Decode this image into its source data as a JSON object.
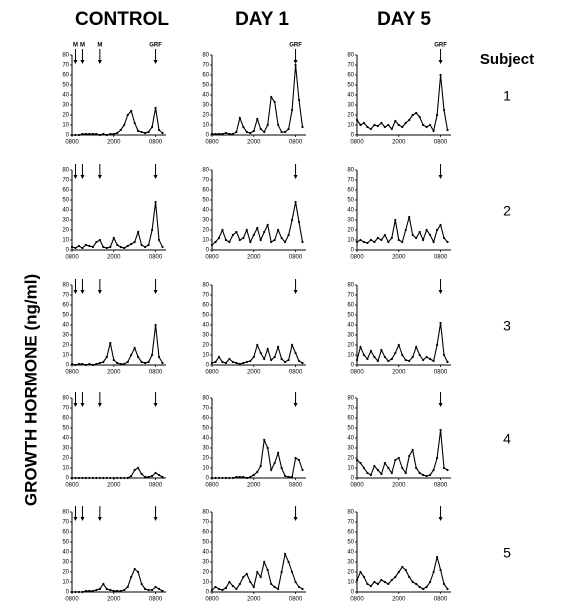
{
  "columns": [
    "CONTROL",
    "DAY 1",
    "DAY 5"
  ],
  "subject_label": "Subject",
  "subjects": [
    "1",
    "2",
    "3",
    "4",
    "5"
  ],
  "y_label": "GROWTH HORMONE (ng/ml)",
  "chart_data": [
    {
      "type": "line",
      "x": [
        0,
        1,
        2,
        3,
        4,
        5,
        6,
        7,
        8,
        9,
        10,
        11,
        12,
        13,
        14,
        15,
        16,
        17,
        18,
        19,
        20,
        21,
        22,
        23,
        24,
        25,
        26
      ],
      "values": [
        0,
        0,
        0,
        1,
        1,
        1,
        1,
        1,
        0,
        1,
        0,
        1,
        1,
        2,
        5,
        10,
        20,
        24,
        12,
        4,
        3,
        2,
        3,
        8,
        27,
        5,
        2
      ],
      "xlim": [
        0,
        27
      ],
      "ylim": [
        0,
        80
      ],
      "xticks": [
        {
          "value": 0,
          "label": "0800"
        },
        {
          "value": 12,
          "label": "2000"
        },
        {
          "value": 24,
          "label": "0800"
        }
      ],
      "yticks": [
        0,
        10,
        20,
        30,
        40,
        50,
        60,
        70,
        80
      ],
      "markers": {
        "x": [
          1,
          3,
          8,
          24
        ],
        "labels": [
          "M",
          "M",
          "M",
          "GRF"
        ]
      }
    },
    {
      "type": "line",
      "x": [
        0,
        1,
        2,
        3,
        4,
        5,
        6,
        7,
        8,
        9,
        10,
        11,
        12,
        13,
        14,
        15,
        16,
        17,
        18,
        19,
        20,
        21,
        22,
        23,
        24,
        25,
        26
      ],
      "values": [
        1,
        1,
        1,
        1,
        2,
        1,
        1,
        3,
        17,
        8,
        3,
        2,
        4,
        16,
        6,
        3,
        10,
        38,
        33,
        10,
        3,
        3,
        6,
        25,
        70,
        35,
        8
      ],
      "xlim": [
        0,
        27
      ],
      "ylim": [
        0,
        80
      ],
      "xticks": [
        {
          "value": 0,
          "label": "0800"
        },
        {
          "value": 12,
          "label": "2000"
        },
        {
          "value": 24,
          "label": "0800"
        }
      ],
      "yticks": [
        0,
        10,
        20,
        30,
        40,
        50,
        60,
        70,
        80
      ],
      "markers": {
        "x": [
          24
        ],
        "labels": [
          "GRF"
        ]
      }
    },
    {
      "type": "line",
      "x": [
        0,
        1,
        2,
        3,
        4,
        5,
        6,
        7,
        8,
        9,
        10,
        11,
        12,
        13,
        14,
        15,
        16,
        17,
        18,
        19,
        20,
        21,
        22,
        23,
        24,
        25,
        26
      ],
      "values": [
        15,
        10,
        12,
        8,
        6,
        10,
        9,
        12,
        8,
        10,
        6,
        14,
        10,
        8,
        12,
        15,
        20,
        22,
        18,
        10,
        8,
        10,
        4,
        20,
        60,
        25,
        5
      ],
      "xlim": [
        0,
        27
      ],
      "ylim": [
        0,
        80
      ],
      "xticks": [
        {
          "value": 0,
          "label": "0800"
        },
        {
          "value": 12,
          "label": "2000"
        },
        {
          "value": 24,
          "label": "0800"
        }
      ],
      "yticks": [
        0,
        10,
        20,
        30,
        40,
        50,
        60,
        70,
        80
      ],
      "markers": {
        "x": [
          24
        ],
        "labels": [
          "GRF"
        ]
      }
    },
    {
      "type": "line",
      "x": [
        0,
        1,
        2,
        3,
        4,
        5,
        6,
        7,
        8,
        9,
        10,
        11,
        12,
        13,
        14,
        15,
        16,
        17,
        18,
        19,
        20,
        21,
        22,
        23,
        24,
        25,
        26
      ],
      "values": [
        3,
        2,
        4,
        2,
        5,
        4,
        3,
        8,
        10,
        3,
        2,
        3,
        12,
        5,
        3,
        2,
        4,
        6,
        8,
        18,
        5,
        3,
        5,
        20,
        48,
        10,
        3
      ],
      "xlim": [
        0,
        27
      ],
      "ylim": [
        0,
        80
      ],
      "xticks": [
        {
          "value": 0,
          "label": "0800"
        },
        {
          "value": 12,
          "label": "2000"
        },
        {
          "value": 24,
          "label": "0800"
        }
      ],
      "yticks": [
        0,
        10,
        20,
        30,
        40,
        50,
        60,
        70,
        80
      ],
      "markers": {
        "x": [
          1,
          3,
          8,
          24
        ]
      }
    },
    {
      "type": "line",
      "x": [
        0,
        1,
        2,
        3,
        4,
        5,
        6,
        7,
        8,
        9,
        10,
        11,
        12,
        13,
        14,
        15,
        16,
        17,
        18,
        19,
        20,
        21,
        22,
        23,
        24,
        25,
        26
      ],
      "values": [
        5,
        8,
        12,
        20,
        10,
        8,
        15,
        18,
        10,
        12,
        20,
        8,
        15,
        22,
        10,
        18,
        25,
        8,
        10,
        20,
        12,
        8,
        15,
        30,
        48,
        28,
        8
      ],
      "xlim": [
        0,
        27
      ],
      "ylim": [
        0,
        80
      ],
      "xticks": [
        {
          "value": 0,
          "label": "0800"
        },
        {
          "value": 12,
          "label": "2000"
        },
        {
          "value": 24,
          "label": "0800"
        }
      ],
      "yticks": [
        0,
        10,
        20,
        30,
        40,
        50,
        60,
        70,
        80
      ],
      "markers": {
        "x": [
          24
        ]
      }
    },
    {
      "type": "line",
      "x": [
        0,
        1,
        2,
        3,
        4,
        5,
        6,
        7,
        8,
        9,
        10,
        11,
        12,
        13,
        14,
        15,
        16,
        17,
        18,
        19,
        20,
        21,
        22,
        23,
        24,
        25,
        26
      ],
      "values": [
        8,
        10,
        8,
        7,
        10,
        8,
        12,
        10,
        15,
        8,
        12,
        30,
        10,
        8,
        20,
        33,
        15,
        12,
        18,
        10,
        20,
        15,
        8,
        20,
        25,
        12,
        8
      ],
      "xlim": [
        0,
        27
      ],
      "ylim": [
        0,
        80
      ],
      "xticks": [
        {
          "value": 0,
          "label": "0800"
        },
        {
          "value": 12,
          "label": "2000"
        },
        {
          "value": 24,
          "label": "0800"
        }
      ],
      "yticks": [
        0,
        10,
        20,
        30,
        40,
        50,
        60,
        70,
        80
      ],
      "markers": {
        "x": [
          24
        ]
      }
    },
    {
      "type": "line",
      "x": [
        0,
        1,
        2,
        3,
        4,
        5,
        6,
        7,
        8,
        9,
        10,
        11,
        12,
        13,
        14,
        15,
        16,
        17,
        18,
        19,
        20,
        21,
        22,
        23,
        24,
        25,
        26
      ],
      "values": [
        1,
        0,
        1,
        1,
        0,
        1,
        0,
        1,
        2,
        3,
        8,
        22,
        5,
        2,
        1,
        1,
        3,
        10,
        17,
        8,
        3,
        2,
        3,
        10,
        40,
        8,
        2
      ],
      "xlim": [
        0,
        27
      ],
      "ylim": [
        0,
        80
      ],
      "xticks": [
        {
          "value": 0,
          "label": "0800"
        },
        {
          "value": 12,
          "label": "2000"
        },
        {
          "value": 24,
          "label": "0800"
        }
      ],
      "yticks": [
        0,
        10,
        20,
        30,
        40,
        50,
        60,
        70,
        80
      ],
      "markers": {
        "x": [
          1,
          3,
          8,
          24
        ]
      }
    },
    {
      "type": "line",
      "x": [
        0,
        1,
        2,
        3,
        4,
        5,
        6,
        7,
        8,
        9,
        10,
        11,
        12,
        13,
        14,
        15,
        16,
        17,
        18,
        19,
        20,
        21,
        22,
        23,
        24,
        25,
        26
      ],
      "values": [
        2,
        3,
        8,
        3,
        2,
        6,
        3,
        2,
        1,
        2,
        3,
        4,
        8,
        20,
        12,
        6,
        16,
        5,
        8,
        18,
        6,
        3,
        5,
        20,
        12,
        4,
        2
      ],
      "xlim": [
        0,
        27
      ],
      "ylim": [
        0,
        80
      ],
      "xticks": [
        {
          "value": 0,
          "label": "0800"
        },
        {
          "value": 12,
          "label": "2000"
        },
        {
          "value": 24,
          "label": "0800"
        }
      ],
      "yticks": [
        0,
        10,
        20,
        30,
        40,
        50,
        60,
        70,
        80
      ],
      "markers": {
        "x": [
          24
        ]
      }
    },
    {
      "type": "line",
      "x": [
        0,
        1,
        2,
        3,
        4,
        5,
        6,
        7,
        8,
        9,
        10,
        11,
        12,
        13,
        14,
        15,
        16,
        17,
        18,
        19,
        20,
        21,
        22,
        23,
        24,
        25,
        26
      ],
      "values": [
        5,
        18,
        10,
        6,
        14,
        8,
        4,
        15,
        8,
        4,
        6,
        12,
        20,
        10,
        5,
        4,
        8,
        18,
        10,
        5,
        8,
        6,
        4,
        20,
        42,
        10,
        3
      ],
      "xlim": [
        0,
        27
      ],
      "ylim": [
        0,
        80
      ],
      "xticks": [
        {
          "value": 0,
          "label": "0800"
        },
        {
          "value": 12,
          "label": "2000"
        },
        {
          "value": 24,
          "label": "0800"
        }
      ],
      "yticks": [
        0,
        10,
        20,
        30,
        40,
        50,
        60,
        70,
        80
      ],
      "markers": {
        "x": [
          24
        ]
      }
    },
    {
      "type": "line",
      "x": [
        0,
        1,
        2,
        3,
        4,
        5,
        6,
        7,
        8,
        9,
        10,
        11,
        12,
        13,
        14,
        15,
        16,
        17,
        18,
        19,
        20,
        21,
        22,
        23,
        24,
        25,
        26
      ],
      "values": [
        0,
        0,
        0,
        0,
        0,
        0,
        0,
        0,
        0,
        0,
        0,
        0,
        0,
        0,
        0,
        0,
        0,
        2,
        8,
        10,
        4,
        1,
        1,
        2,
        5,
        3,
        1
      ],
      "xlim": [
        0,
        27
      ],
      "ylim": [
        0,
        80
      ],
      "xticks": [
        {
          "value": 0,
          "label": "0800"
        },
        {
          "value": 12,
          "label": "2000"
        },
        {
          "value": 24,
          "label": "0800"
        }
      ],
      "yticks": [
        0,
        10,
        20,
        30,
        40,
        50,
        60,
        70,
        80
      ],
      "markers": {
        "x": [
          1,
          3,
          8,
          24
        ]
      }
    },
    {
      "type": "line",
      "x": [
        0,
        1,
        2,
        3,
        4,
        5,
        6,
        7,
        8,
        9,
        10,
        11,
        12,
        13,
        14,
        15,
        16,
        17,
        18,
        19,
        20,
        21,
        22,
        23,
        24,
        25,
        26
      ],
      "values": [
        0,
        0,
        0,
        0,
        0,
        0,
        0,
        1,
        1,
        1,
        0,
        1,
        3,
        6,
        12,
        38,
        30,
        8,
        15,
        25,
        10,
        2,
        1,
        1,
        20,
        18,
        8
      ],
      "xlim": [
        0,
        27
      ],
      "ylim": [
        0,
        80
      ],
      "xticks": [
        {
          "value": 0,
          "label": "0800"
        },
        {
          "value": 12,
          "label": "2000"
        },
        {
          "value": 24,
          "label": "0800"
        }
      ],
      "yticks": [
        0,
        10,
        20,
        30,
        40,
        50,
        60,
        70,
        80
      ],
      "markers": {
        "x": [
          24
        ]
      }
    },
    {
      "type": "line",
      "x": [
        0,
        1,
        2,
        3,
        4,
        5,
        6,
        7,
        8,
        9,
        10,
        11,
        12,
        13,
        14,
        15,
        16,
        17,
        18,
        19,
        20,
        21,
        22,
        23,
        24,
        25,
        26
      ],
      "values": [
        18,
        15,
        10,
        5,
        3,
        12,
        8,
        4,
        15,
        10,
        5,
        18,
        20,
        10,
        5,
        22,
        28,
        10,
        5,
        3,
        2,
        3,
        8,
        20,
        48,
        10,
        8
      ],
      "xlim": [
        0,
        27
      ],
      "ylim": [
        0,
        80
      ],
      "xticks": [
        {
          "value": 0,
          "label": "0800"
        },
        {
          "value": 12,
          "label": "2000"
        },
        {
          "value": 24,
          "label": "0800"
        }
      ],
      "yticks": [
        0,
        10,
        20,
        30,
        40,
        50,
        60,
        70,
        80
      ],
      "markers": {
        "x": [
          24
        ]
      }
    },
    {
      "type": "line",
      "x": [
        0,
        1,
        2,
        3,
        4,
        5,
        6,
        7,
        8,
        9,
        10,
        11,
        12,
        13,
        14,
        15,
        16,
        17,
        18,
        19,
        20,
        21,
        22,
        23,
        24,
        25,
        26
      ],
      "values": [
        0,
        0,
        0,
        0,
        1,
        1,
        1,
        2,
        3,
        8,
        3,
        2,
        1,
        1,
        1,
        2,
        5,
        15,
        23,
        20,
        8,
        3,
        2,
        2,
        5,
        3,
        1
      ],
      "xlim": [
        0,
        27
      ],
      "ylim": [
        0,
        80
      ],
      "xticks": [
        {
          "value": 0,
          "label": "0800"
        },
        {
          "value": 12,
          "label": "2000"
        },
        {
          "value": 24,
          "label": "0800"
        }
      ],
      "yticks": [
        0,
        10,
        20,
        30,
        40,
        50,
        60,
        70,
        80
      ],
      "markers": {
        "x": [
          1,
          3,
          8,
          24
        ]
      }
    },
    {
      "type": "line",
      "x": [
        0,
        1,
        2,
        3,
        4,
        5,
        6,
        7,
        8,
        9,
        10,
        11,
        12,
        13,
        14,
        15,
        16,
        17,
        18,
        19,
        20,
        21,
        22,
        23,
        24,
        25,
        26
      ],
      "values": [
        2,
        5,
        3,
        2,
        4,
        10,
        6,
        3,
        8,
        15,
        18,
        10,
        5,
        20,
        15,
        30,
        22,
        8,
        5,
        3,
        20,
        38,
        30,
        20,
        10,
        5,
        3
      ],
      "xlim": [
        0,
        27
      ],
      "ylim": [
        0,
        80
      ],
      "xticks": [
        {
          "value": 0,
          "label": "0800"
        },
        {
          "value": 12,
          "label": "2000"
        },
        {
          "value": 24,
          "label": "0800"
        }
      ],
      "yticks": [
        0,
        10,
        20,
        30,
        40,
        50,
        60,
        70,
        80
      ],
      "markers": {
        "x": [
          24
        ]
      }
    },
    {
      "type": "line",
      "x": [
        0,
        1,
        2,
        3,
        4,
        5,
        6,
        7,
        8,
        9,
        10,
        11,
        12,
        13,
        14,
        15,
        16,
        17,
        18,
        19,
        20,
        21,
        22,
        23,
        24,
        25,
        26
      ],
      "values": [
        12,
        20,
        15,
        8,
        6,
        10,
        8,
        12,
        10,
        8,
        12,
        15,
        20,
        25,
        22,
        15,
        10,
        8,
        5,
        3,
        5,
        10,
        20,
        35,
        22,
        8,
        3
      ],
      "xlim": [
        0,
        27
      ],
      "ylim": [
        0,
        80
      ],
      "xticks": [
        {
          "value": 0,
          "label": "0800"
        },
        {
          "value": 12,
          "label": "2000"
        },
        {
          "value": 24,
          "label": "0800"
        }
      ],
      "yticks": [
        0,
        10,
        20,
        30,
        40,
        50,
        60,
        70,
        80
      ],
      "markers": {
        "x": [
          24
        ]
      }
    }
  ]
}
